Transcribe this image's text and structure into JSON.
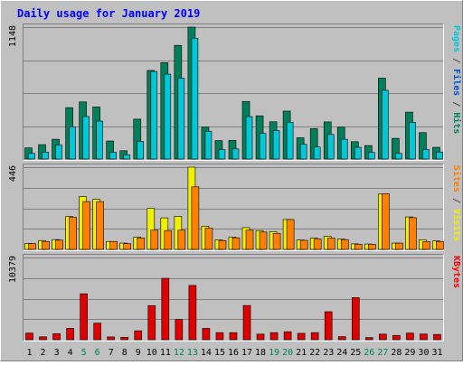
{
  "chart_data": {
    "type": "bar",
    "title": "Daily usage for January 2019",
    "days": [
      "1",
      "2",
      "3",
      "4",
      "5",
      "6",
      "7",
      "8",
      "9",
      "10",
      "11",
      "12",
      "13",
      "14",
      "15",
      "16",
      "17",
      "18",
      "19",
      "20",
      "21",
      "22",
      "23",
      "24",
      "25",
      "26",
      "27",
      "28",
      "29",
      "30",
      "31"
    ],
    "weekend_days": [
      "5",
      "6",
      "12",
      "13",
      "19",
      "20",
      "26",
      "27"
    ],
    "panels": [
      {
        "key": "pfh",
        "axis_max_label": "1148",
        "ymax": 1148,
        "side_label_parts": [
          {
            "text": "Pages",
            "color": "#00c8d8"
          },
          {
            "text": " / ",
            "color": "#4b4b4b"
          },
          {
            "text": "Files",
            "color": "#0050d0"
          },
          {
            "text": " / ",
            "color": "#4b4b4b"
          },
          {
            "text": "Hits",
            "color": "#00805a"
          }
        ],
        "series": [
          {
            "name": "Hits",
            "color": "#00805a",
            "values": [
              97,
              125,
              172,
              447,
              497,
              453,
              157,
              72,
              347,
              771,
              839,
              989,
              1148,
              277,
              160,
              162,
              501,
              376,
              324,
              417,
              185,
              264,
              323,
              277,
              151,
              117,
              704,
              180,
              408,
              230,
              102
            ]
          },
          {
            "name": "Files",
            "color": "#0050d0",
            "values": [
              0,
              0,
              0,
              0,
              0,
              0,
              0,
              0,
              0,
              0,
              0,
              0,
              0,
              0,
              0,
              0,
              0,
              0,
              0,
              0,
              0,
              0,
              0,
              0,
              0,
              0,
              0,
              0,
              0,
              0,
              0
            ]
          },
          {
            "name": "Pages",
            "color": "#00c8d8",
            "values": [
              49,
              60,
              121,
              280,
              370,
              330,
              58,
              36,
              152,
              762,
              739,
              704,
              1051,
              242,
              81,
              88,
              369,
              223,
              247,
              320,
              129,
              105,
              214,
              172,
              102,
              58,
              598,
              49,
              319,
              84,
              61
            ]
          }
        ]
      },
      {
        "key": "sv",
        "axis_max_label": "446",
        "ymax": 446,
        "side_label_parts": [
          {
            "text": "Sites",
            "color": "#ff8000"
          },
          {
            "text": " / ",
            "color": "#4b4b4b"
          },
          {
            "text": "Visits",
            "color": "#f0f000"
          }
        ],
        "series": [
          {
            "name": "Visits",
            "color": "#f0f000",
            "values": [
              32,
              48,
              53,
              178,
              286,
              271,
              43,
              34,
              66,
              222,
              171,
              179,
              446,
              125,
              52,
              66,
              118,
              102,
              96,
              162,
              51,
              61,
              71,
              56,
              30,
              29,
              300,
              34,
              176,
              52,
              46
            ]
          },
          {
            "name": "Sites",
            "color": "#ff8000",
            "values": [
              31,
              43,
              50,
              174,
              259,
              259,
              43,
              31,
              62,
              104,
              102,
              104,
              339,
              115,
              48,
              63,
              104,
              94,
              87,
              162,
              49,
              56,
              61,
              53,
              28,
              28,
              302,
              34,
              172,
              42,
              43
            ]
          }
        ]
      },
      {
        "key": "kb",
        "axis_max_label": "10379",
        "ymax": 10379,
        "side_label_parts": [
          {
            "text": "KBytes",
            "color": "#ff0000"
          }
        ],
        "series": [
          {
            "name": "KBytes",
            "color": "#e00000",
            "values": [
              839,
              364,
              768,
              1432,
              5798,
              2091,
              351,
              312,
              1124,
              4307,
              7752,
              2552,
              6852,
              1431,
              892,
              892,
              4325,
              706,
              892,
              1006,
              805,
              893,
              3535,
              389,
              5311,
              268,
              707,
              544,
              839,
              723,
              664
            ]
          }
        ]
      }
    ]
  }
}
